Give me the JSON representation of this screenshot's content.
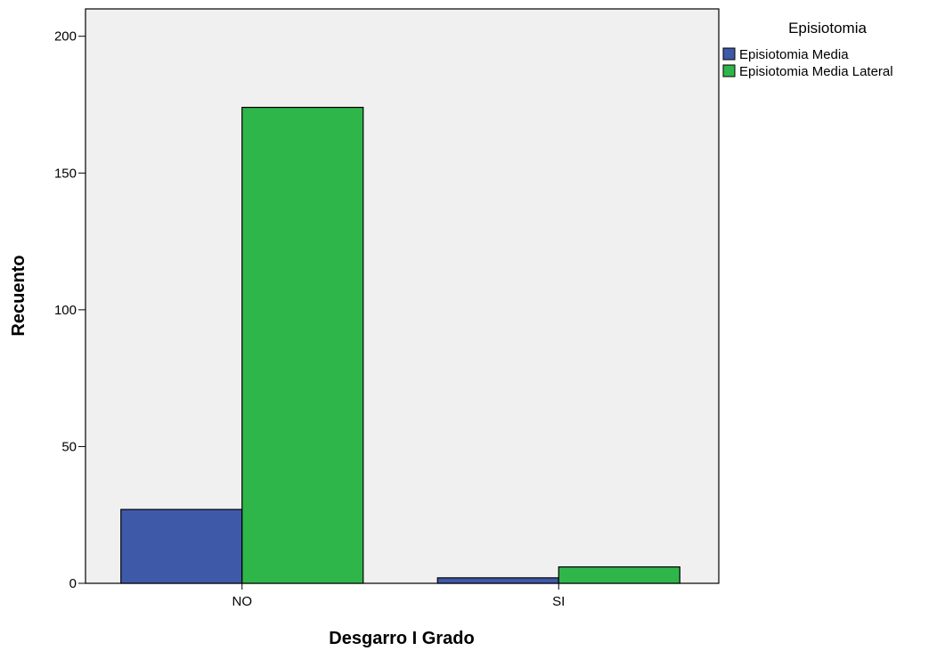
{
  "chart_data": {
    "type": "bar",
    "title": "",
    "xlabel": "Desgarro I Grado",
    "ylabel": "Recuento",
    "categories": [
      "NO",
      "SI"
    ],
    "series": [
      {
        "name": "Episiotomia Media",
        "values": [
          27,
          2
        ],
        "color": "#3f59a9"
      },
      {
        "name": "Episiotomia Media Lateral",
        "values": [
          174,
          6
        ],
        "color": "#2fb64a"
      }
    ],
    "ylim": [
      0,
      210
    ],
    "yticks": [
      0,
      50,
      100,
      150,
      200
    ],
    "grid": false,
    "legend": {
      "title": "Episiotomia",
      "position": "right"
    },
    "plot_background": "#f0f0f0",
    "bar_edge_color": "#000000"
  }
}
